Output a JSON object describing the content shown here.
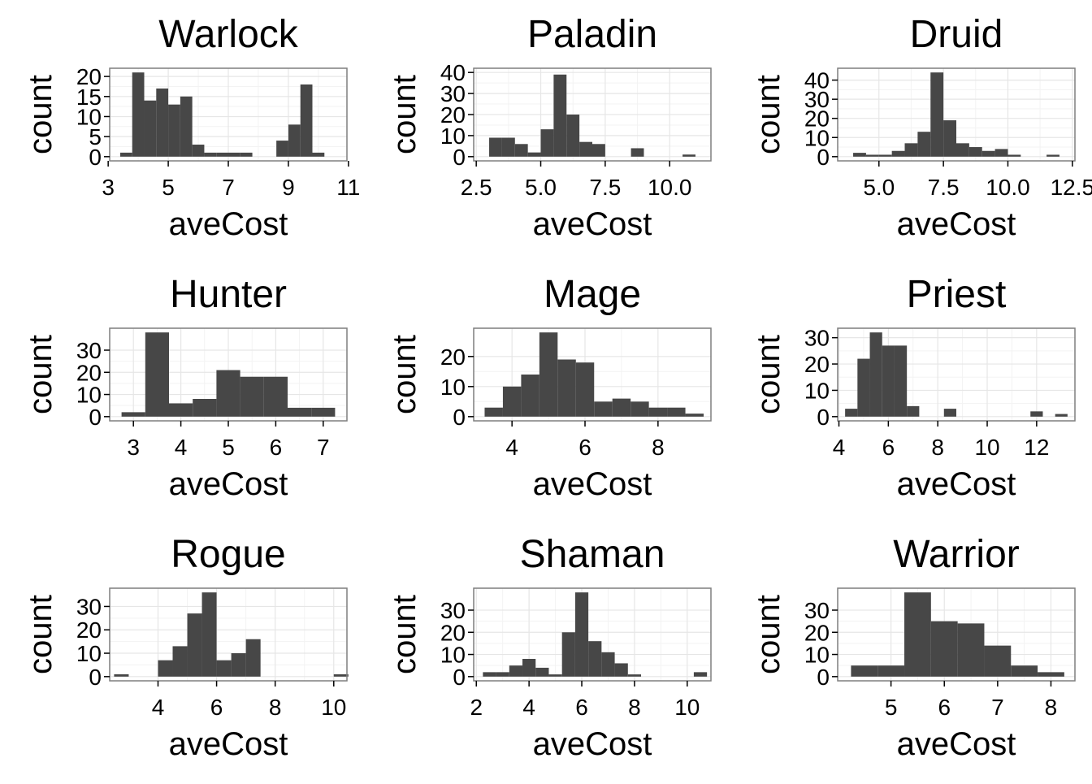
{
  "colors": {
    "bar": "#474747",
    "panel_border": "#7f7f7f",
    "grid_major": "#e6e6e6",
    "grid_minor": "#f3f3f3",
    "background": "#ffffff"
  },
  "chart_data": [
    {
      "type": "bar",
      "title": "Warlock",
      "xlabel": "aveCost",
      "ylabel": "count",
      "xlim": [
        3.05,
        10.95
      ],
      "ylim": [
        -1.05,
        22.05
      ],
      "xticks": [
        3,
        5,
        7,
        9,
        11
      ],
      "xticklabels": [
        "3",
        "5",
        "7",
        "9",
        "11"
      ],
      "yticks": [
        0,
        5,
        10,
        15,
        20
      ],
      "yticklabels": [
        "0",
        "5",
        "10",
        "15",
        "20"
      ],
      "x": [
        3.6,
        4.0,
        4.4,
        4.8,
        5.2,
        5.6,
        6.0,
        6.4,
        6.8,
        7.2,
        7.6,
        8.0,
        8.4,
        8.8,
        9.2,
        9.6,
        10.0,
        10.4
      ],
      "values": [
        1,
        21,
        14,
        17,
        13,
        15,
        3,
        1,
        1,
        1,
        1,
        0,
        0,
        4,
        8,
        18,
        1,
        0
      ],
      "binwidth": 0.4
    },
    {
      "type": "bar",
      "title": "Paladin",
      "xlabel": "aveCost",
      "ylabel": "count",
      "xlim": [
        2.4,
        11.6
      ],
      "ylim": [
        -2,
        42
      ],
      "xticks": [
        2.5,
        5.0,
        7.5,
        10.0
      ],
      "xticklabels": [
        "2.5",
        "5.0",
        "7.5",
        "10.0"
      ],
      "yticks": [
        0,
        10,
        20,
        30,
        40
      ],
      "yticklabels": [
        "0",
        "10",
        "20",
        "30",
        "40"
      ],
      "x": [
        3.25,
        3.75,
        4.25,
        4.75,
        5.25,
        5.75,
        6.25,
        6.75,
        7.25,
        7.75,
        8.25,
        8.75,
        9.25,
        9.75,
        10.25,
        10.75
      ],
      "values": [
        9,
        9,
        6,
        2,
        13,
        39,
        20,
        7,
        6,
        0,
        0,
        4,
        0,
        0,
        0,
        1
      ],
      "binwidth": 0.5
    },
    {
      "type": "bar",
      "title": "Druid",
      "xlabel": "aveCost",
      "ylabel": "count",
      "xlim": [
        3.4,
        12.6
      ],
      "ylim": [
        -2.2,
        46.2
      ],
      "xticks": [
        5.0,
        7.5,
        10.0,
        12.5
      ],
      "xticklabels": [
        "5.0",
        "7.5",
        "10.0",
        "12.5"
      ],
      "yticks": [
        0,
        10,
        20,
        30,
        40
      ],
      "yticklabels": [
        "0",
        "10",
        "20",
        "30",
        "40"
      ],
      "x": [
        4.25,
        4.75,
        5.25,
        5.75,
        6.25,
        6.75,
        7.25,
        7.75,
        8.25,
        8.75,
        9.25,
        9.75,
        10.25,
        10.75,
        11.25,
        11.75
      ],
      "values": [
        2,
        1,
        1,
        3,
        7,
        13,
        44,
        19,
        7,
        5,
        3,
        4,
        1,
        0,
        0,
        1
      ],
      "binwidth": 0.5
    },
    {
      "type": "bar",
      "title": "Hunter",
      "xlabel": "aveCost",
      "ylabel": "count",
      "xlim": [
        2.5,
        7.5
      ],
      "ylim": [
        -1.9,
        39.9
      ],
      "xticks": [
        3,
        4,
        5,
        6,
        7
      ],
      "xticklabels": [
        "3",
        "4",
        "5",
        "6",
        "7"
      ],
      "yticks": [
        0,
        10,
        20,
        30
      ],
      "yticklabels": [
        "0",
        "10",
        "20",
        "30"
      ],
      "x": [
        3.0,
        3.5,
        4.0,
        4.5,
        5.0,
        5.5,
        6.0,
        6.5,
        7.0
      ],
      "values": [
        2,
        38,
        6,
        8,
        21,
        18,
        18,
        4,
        4
      ],
      "binwidth": 0.5
    },
    {
      "type": "bar",
      "title": "Mage",
      "xlabel": "aveCost",
      "ylabel": "count",
      "xlim": [
        2.95,
        9.45
      ],
      "ylim": [
        -1.4,
        29.4
      ],
      "xticks": [
        4,
        6,
        8
      ],
      "xticklabels": [
        "4",
        "6",
        "8"
      ],
      "yticks": [
        0,
        10,
        20
      ],
      "yticklabels": [
        "0",
        "10",
        "20"
      ],
      "x": [
        3.5,
        4.0,
        4.5,
        5.0,
        5.5,
        6.0,
        6.5,
        7.0,
        7.5,
        8.0,
        8.5,
        9.0
      ],
      "values": [
        3,
        10,
        14,
        28,
        19,
        18,
        5,
        6,
        5,
        3,
        3,
        1
      ],
      "binwidth": 0.5
    },
    {
      "type": "bar",
      "title": "Priest",
      "xlabel": "aveCost",
      "ylabel": "count",
      "xlim": [
        3.95,
        13.55
      ],
      "ylim": [
        -1.6,
        33.6
      ],
      "xticks": [
        4,
        6,
        8,
        10,
        12
      ],
      "xticklabels": [
        "4",
        "6",
        "8",
        "10",
        "12"
      ],
      "yticks": [
        0,
        10,
        20,
        30
      ],
      "yticklabels": [
        "0",
        "10",
        "20",
        "30"
      ],
      "x": [
        4.5,
        5.0,
        5.5,
        6.0,
        6.5,
        7.0,
        7.5,
        8.0,
        8.5,
        9.0,
        9.5,
        10.0,
        10.5,
        11.0,
        11.5,
        12.0,
        12.5,
        13.0
      ],
      "values": [
        3,
        22,
        32,
        27,
        27,
        4,
        0,
        0,
        3,
        0,
        0,
        0,
        0,
        0,
        0,
        2,
        0,
        1
      ],
      "binwidth": 0.5
    },
    {
      "type": "bar",
      "title": "Rogue",
      "xlabel": "aveCost",
      "ylabel": "count",
      "xlim": [
        2.35,
        10.45
      ],
      "ylim": [
        -1.8,
        37.8
      ],
      "xticks": [
        4,
        6,
        8,
        10
      ],
      "xticklabels": [
        "4",
        "6",
        "8",
        "10"
      ],
      "yticks": [
        0,
        10,
        20,
        30
      ],
      "yticklabels": [
        "0",
        "10",
        "20",
        "30"
      ],
      "x": [
        2.75,
        3.25,
        3.75,
        4.25,
        4.75,
        5.25,
        5.75,
        6.25,
        6.75,
        7.25,
        7.75,
        8.25,
        8.75,
        9.25,
        9.75,
        10.25
      ],
      "values": [
        1,
        0,
        0,
        7,
        13,
        27,
        36,
        7,
        10,
        16,
        0,
        0,
        0,
        0,
        0,
        1
      ],
      "binwidth": 0.5
    },
    {
      "type": "bar",
      "title": "Shaman",
      "xlabel": "aveCost",
      "ylabel": "count",
      "xlim": [
        1.9,
        10.9
      ],
      "ylim": [
        -1.9,
        39.9
      ],
      "xticks": [
        2,
        4,
        6,
        8,
        10
      ],
      "xticklabels": [
        "2",
        "4",
        "6",
        "8",
        "10"
      ],
      "yticks": [
        0,
        10,
        20,
        30
      ],
      "yticklabels": [
        "0",
        "10",
        "20",
        "30"
      ],
      "x": [
        2.5,
        3.0,
        3.5,
        4.0,
        4.5,
        5.0,
        5.5,
        6.0,
        6.5,
        7.0,
        7.5,
        8.0,
        8.5,
        9.0,
        9.5,
        10.0,
        10.5
      ],
      "values": [
        2,
        2,
        5,
        8,
        4,
        1,
        20,
        38,
        16,
        11,
        6,
        1,
        0,
        0,
        0,
        0,
        2
      ],
      "binwidth": 0.5
    },
    {
      "type": "bar",
      "title": "Warrior",
      "xlabel": "aveCost",
      "ylabel": "count",
      "xlim": [
        4.0,
        8.45
      ],
      "ylim": [
        -1.9,
        39.9
      ],
      "xticks": [
        5,
        6,
        7,
        8
      ],
      "xticklabels": [
        "5",
        "6",
        "7",
        "8"
      ],
      "yticks": [
        0,
        10,
        20,
        30
      ],
      "yticklabels": [
        "0",
        "10",
        "20",
        "30"
      ],
      "x": [
        4.5,
        5.0,
        5.5,
        6.0,
        6.5,
        7.0,
        7.5,
        8.0
      ],
      "values": [
        5,
        5,
        38,
        25,
        24,
        14,
        5,
        2
      ],
      "binwidth": 0.5
    }
  ]
}
